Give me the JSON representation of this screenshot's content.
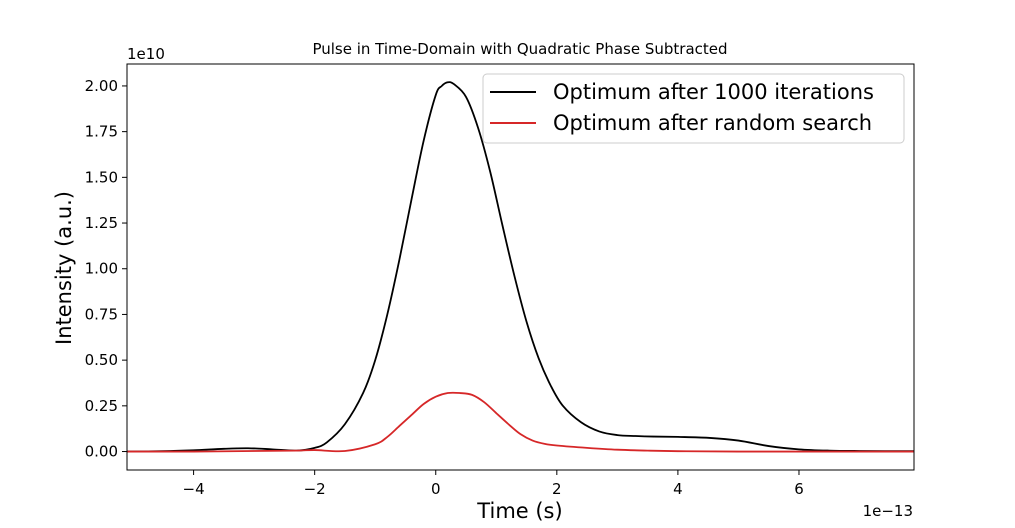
{
  "chart_data": {
    "type": "line",
    "title": "Pulse in Time-Domain with Quadratic Phase Subtracted",
    "xlabel": "Time (s)",
    "ylabel": "Intensity (a.u.)",
    "x_offset_label": "1e−13",
    "y_offset_label": "1e10",
    "xlim": [
      -5.1,
      7.9
    ],
    "ylim": [
      -0.101,
      2.12
    ],
    "x_ticks": [
      -4,
      -2,
      0,
      2,
      4,
      6
    ],
    "x_tick_labels": [
      "−4",
      "−2",
      "0",
      "2",
      "4",
      "6"
    ],
    "y_ticks": [
      0.0,
      0.25,
      0.5,
      0.75,
      1.0,
      1.25,
      1.5,
      1.75,
      2.0
    ],
    "y_tick_labels": [
      "0.00",
      "0.25",
      "0.50",
      "0.75",
      "1.00",
      "1.25",
      "1.50",
      "1.75",
      "2.00"
    ],
    "grid": false,
    "legend_position": "top-right",
    "series": [
      {
        "name": "Optimum after 1000 iterations",
        "color": "#000000",
        "x": [
          -5.1,
          -4.5,
          -4.0,
          -3.5,
          -3.1,
          -2.7,
          -2.3,
          -2.0,
          -1.8,
          -1.5,
          -1.2,
          -1.0,
          -0.8,
          -0.6,
          -0.4,
          -0.2,
          0.0,
          0.1,
          0.2,
          0.3,
          0.5,
          0.7,
          0.9,
          1.1,
          1.3,
          1.5,
          1.7,
          1.9,
          2.1,
          2.4,
          2.7,
          3.0,
          3.3,
          3.6,
          4.0,
          4.5,
          5.0,
          5.5,
          6.0,
          6.5,
          7.0,
          7.9
        ],
        "y": [
          0.0,
          0.002,
          0.007,
          0.015,
          0.018,
          0.012,
          0.005,
          0.02,
          0.05,
          0.15,
          0.32,
          0.5,
          0.75,
          1.05,
          1.38,
          1.7,
          1.95,
          2.0,
          2.02,
          2.01,
          1.94,
          1.77,
          1.53,
          1.24,
          0.96,
          0.71,
          0.51,
          0.36,
          0.25,
          0.16,
          0.11,
          0.09,
          0.085,
          0.082,
          0.08,
          0.075,
          0.06,
          0.03,
          0.012,
          0.005,
          0.003,
          0.002
        ]
      },
      {
        "name": "Optimum after random search",
        "color": "#d62728",
        "x": [
          -5.1,
          -4.0,
          -3.0,
          -2.3,
          -2.0,
          -1.5,
          -1.0,
          -0.8,
          -0.6,
          -0.4,
          -0.2,
          0.0,
          0.2,
          0.4,
          0.6,
          0.8,
          1.0,
          1.2,
          1.4,
          1.6,
          1.8,
          2.0,
          2.5,
          3.0,
          3.5,
          4.0,
          5.0,
          7.9
        ],
        "y": [
          0.0,
          0.0,
          0.003,
          0.005,
          0.008,
          0.003,
          0.04,
          0.08,
          0.14,
          0.2,
          0.26,
          0.3,
          0.32,
          0.32,
          0.31,
          0.27,
          0.21,
          0.15,
          0.095,
          0.06,
          0.042,
          0.033,
          0.02,
          0.01,
          0.005,
          0.002,
          0.0,
          0.0
        ]
      }
    ]
  }
}
